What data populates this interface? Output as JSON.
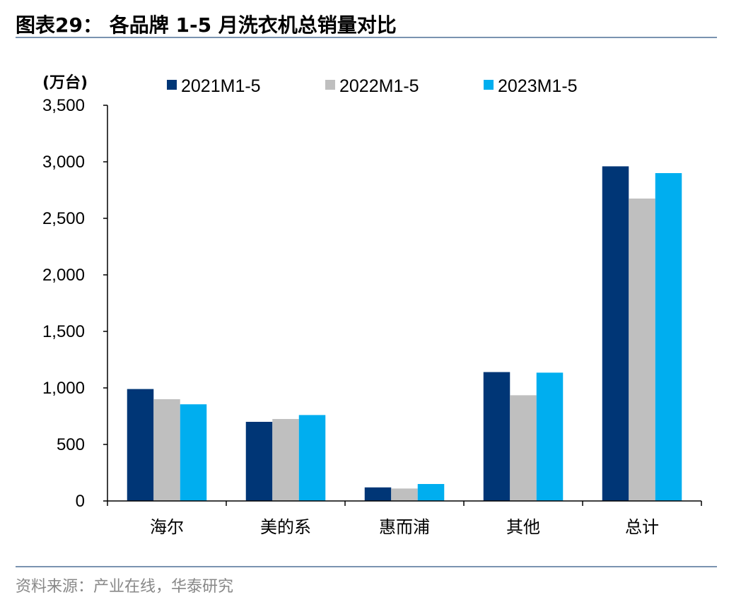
{
  "title": "图表29：  各品牌 1-5 月洗衣机总销量对比",
  "source": "资料来源：产业在线，华泰研究",
  "chart_data": {
    "type": "bar",
    "categories": [
      "海尔",
      "美的系",
      "惠而浦",
      "其他",
      "总计"
    ],
    "series": [
      {
        "name": "2021M1-5",
        "color": "#003676",
        "values": [
          990,
          700,
          120,
          1140,
          2960
        ]
      },
      {
        "name": "2022M1-5",
        "color": "#bfbfbf",
        "values": [
          900,
          725,
          110,
          935,
          2675
        ]
      },
      {
        "name": "2023M1-5",
        "color": "#00aeef",
        "values": [
          855,
          760,
          150,
          1135,
          2900
        ]
      }
    ],
    "ylabel": "(万台)",
    "ylim": [
      0,
      3500
    ],
    "yticks": [
      0,
      500,
      1000,
      1500,
      2000,
      2500,
      3000,
      3500
    ],
    "ytick_labels": [
      "0",
      "500",
      "1,000",
      "1,500",
      "2,000",
      "2,500",
      "3,000",
      "3,500"
    ],
    "legend_position": "top",
    "grid": false
  }
}
